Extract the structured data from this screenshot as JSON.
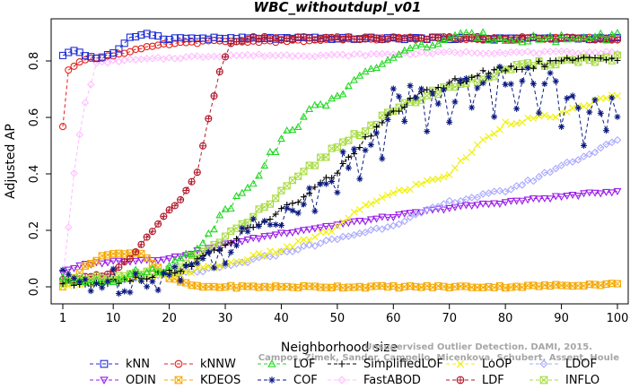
{
  "chart_data": {
    "type": "line",
    "title": "WBC_withoutdupl_v01",
    "xlabel": "Neighborhood size",
    "ylabel": "Adjusted AP",
    "xlim": [
      1,
      100
    ],
    "ylim": [
      -0.04,
      0.93
    ],
    "xticks": [
      1,
      10,
      20,
      30,
      40,
      50,
      60,
      70,
      80,
      90,
      100
    ],
    "yticks": [
      0.0,
      0.2,
      0.4,
      0.6,
      0.8
    ],
    "ytick_labels": [
      "0.0",
      "0.2",
      "0.4",
      "0.6",
      "0.8"
    ],
    "grid": false,
    "legend_position": "bottom",
    "watermark_lines": [
      "Unsupervised Outlier Detection. DAMI, 2015.",
      "Campos, Zimek, Sander, Campello, Micenkova, Schubert, Assent, Houle"
    ],
    "series": [
      {
        "name": "kNN",
        "color": "#1f2fd6",
        "marker": "square",
        "knots": [
          [
            1,
            0.82
          ],
          [
            3,
            0.84
          ],
          [
            5,
            0.82
          ],
          [
            7,
            0.81
          ],
          [
            9,
            0.82
          ],
          [
            11,
            0.84
          ],
          [
            13,
            0.88
          ],
          [
            16,
            0.9
          ],
          [
            19,
            0.88
          ],
          [
            22,
            0.88
          ],
          [
            25,
            0.88
          ],
          [
            30,
            0.88
          ],
          [
            40,
            0.88
          ],
          [
            60,
            0.88
          ],
          [
            100,
            0.88
          ]
        ]
      },
      {
        "name": "kNNW",
        "color": "#e3201c",
        "marker": "circle",
        "knots": [
          [
            1,
            0.57
          ],
          [
            2,
            0.77
          ],
          [
            4,
            0.8
          ],
          [
            7,
            0.81
          ],
          [
            10,
            0.82
          ],
          [
            14,
            0.84
          ],
          [
            20,
            0.86
          ],
          [
            28,
            0.87
          ],
          [
            40,
            0.87
          ],
          [
            60,
            0.88
          ],
          [
            100,
            0.88
          ]
        ]
      },
      {
        "name": "LOF",
        "color": "#22d822",
        "marker": "triangle",
        "knots": [
          [
            1,
            0.02
          ],
          [
            10,
            0.03
          ],
          [
            20,
            0.07
          ],
          [
            25,
            0.14
          ],
          [
            30,
            0.27
          ],
          [
            35,
            0.38
          ],
          [
            40,
            0.52
          ],
          [
            45,
            0.62
          ],
          [
            50,
            0.68
          ],
          [
            55,
            0.75
          ],
          [
            60,
            0.82
          ],
          [
            65,
            0.85
          ],
          [
            70,
            0.88
          ],
          [
            75,
            0.89
          ],
          [
            80,
            0.88
          ],
          [
            90,
            0.88
          ],
          [
            100,
            0.89
          ]
        ]
      },
      {
        "name": "SimplifiedLOF",
        "color": "#000000",
        "marker": "plus",
        "knots": [
          [
            1,
            0.01
          ],
          [
            10,
            0.02
          ],
          [
            20,
            0.05
          ],
          [
            25,
            0.09
          ],
          [
            30,
            0.15
          ],
          [
            35,
            0.21
          ],
          [
            40,
            0.27
          ],
          [
            45,
            0.33
          ],
          [
            50,
            0.41
          ],
          [
            55,
            0.52
          ],
          [
            60,
            0.62
          ],
          [
            65,
            0.68
          ],
          [
            70,
            0.72
          ],
          [
            75,
            0.75
          ],
          [
            80,
            0.77
          ],
          [
            90,
            0.8
          ],
          [
            100,
            0.81
          ]
        ]
      },
      {
        "name": "LoOP",
        "color": "#f0f000",
        "marker": "x",
        "knots": [
          [
            1,
            0.01
          ],
          [
            10,
            0.02
          ],
          [
            20,
            0.04
          ],
          [
            30,
            0.08
          ],
          [
            40,
            0.13
          ],
          [
            50,
            0.21
          ],
          [
            55,
            0.29
          ],
          [
            60,
            0.33
          ],
          [
            70,
            0.4
          ],
          [
            75,
            0.5
          ],
          [
            80,
            0.58
          ],
          [
            90,
            0.61
          ],
          [
            95,
            0.65
          ],
          [
            100,
            0.68
          ]
        ]
      },
      {
        "name": "LDOF",
        "color": "#a8a8ff",
        "marker": "diamond",
        "knots": [
          [
            1,
            0.02
          ],
          [
            10,
            0.02
          ],
          [
            20,
            0.04
          ],
          [
            30,
            0.07
          ],
          [
            40,
            0.12
          ],
          [
            50,
            0.17
          ],
          [
            60,
            0.22
          ],
          [
            70,
            0.3
          ],
          [
            80,
            0.34
          ],
          [
            85,
            0.38
          ],
          [
            90,
            0.43
          ],
          [
            95,
            0.47
          ],
          [
            100,
            0.52
          ]
        ]
      },
      {
        "name": "ODIN",
        "color": "#9a1be8",
        "marker": "triangle-down",
        "knots": [
          [
            1,
            0.05
          ],
          [
            5,
            0.08
          ],
          [
            10,
            0.09
          ],
          [
            20,
            0.1
          ],
          [
            30,
            0.15
          ],
          [
            40,
            0.19
          ],
          [
            50,
            0.22
          ],
          [
            60,
            0.25
          ],
          [
            70,
            0.28
          ],
          [
            80,
            0.3
          ],
          [
            90,
            0.32
          ],
          [
            100,
            0.34
          ]
        ]
      },
      {
        "name": "COF",
        "color": "#0a1a80",
        "marker": "asterisk",
        "knots": [
          [
            1,
            0.02
          ],
          [
            10,
            0.02
          ],
          [
            20,
            0.04
          ],
          [
            25,
            0.08
          ],
          [
            30,
            0.13
          ],
          [
            35,
            0.2
          ],
          [
            40,
            0.26
          ],
          [
            45,
            0.34
          ],
          [
            50,
            0.42
          ],
          [
            55,
            0.52
          ],
          [
            60,
            0.66
          ],
          [
            65,
            0.7
          ],
          [
            70,
            0.68
          ],
          [
            75,
            0.73
          ],
          [
            80,
            0.75
          ],
          [
            85,
            0.73
          ],
          [
            90,
            0.71
          ],
          [
            95,
            0.66
          ],
          [
            100,
            0.63
          ]
        ]
      },
      {
        "name": "FastABOD",
        "color": "#ffbcff",
        "marker": "diamond",
        "knots": [
          [
            1,
            0.02
          ],
          [
            3,
            0.4
          ],
          [
            4,
            0.54
          ],
          [
            5,
            0.65
          ],
          [
            7,
            0.79
          ],
          [
            10,
            0.8
          ],
          [
            20,
            0.81
          ],
          [
            30,
            0.82
          ],
          [
            50,
            0.82
          ],
          [
            70,
            0.83
          ],
          [
            100,
            0.83
          ]
        ]
      },
      {
        "name": "LDF",
        "color": "#b2192a",
        "marker": "circle-plus",
        "knots": [
          [
            1,
            0.02
          ],
          [
            10,
            0.05
          ],
          [
            14,
            0.12
          ],
          [
            17,
            0.2
          ],
          [
            20,
            0.27
          ],
          [
            22,
            0.31
          ],
          [
            25,
            0.4
          ],
          [
            27,
            0.6
          ],
          [
            29,
            0.76
          ],
          [
            31,
            0.86
          ],
          [
            35,
            0.88
          ],
          [
            40,
            0.88
          ],
          [
            60,
            0.88
          ],
          [
            100,
            0.88
          ]
        ]
      },
      {
        "name": "KDEOS",
        "color": "#f5a800",
        "marker": "square-x",
        "knots": [
          [
            1,
            0.0
          ],
          [
            5,
            0.07
          ],
          [
            8,
            0.11
          ],
          [
            12,
            0.12
          ],
          [
            15,
            0.12
          ],
          [
            20,
            0.03
          ],
          [
            25,
            0.0
          ],
          [
            40,
            0.0
          ],
          [
            60,
            0.0
          ],
          [
            80,
            0.0
          ],
          [
            100,
            0.01
          ]
        ]
      },
      {
        "name": "INFLO",
        "color": "#a6dc40",
        "marker": "square-x",
        "knots": [
          [
            1,
            0.02
          ],
          [
            10,
            0.03
          ],
          [
            20,
            0.06
          ],
          [
            25,
            0.11
          ],
          [
            30,
            0.17
          ],
          [
            35,
            0.25
          ],
          [
            40,
            0.33
          ],
          [
            45,
            0.42
          ],
          [
            50,
            0.5
          ],
          [
            55,
            0.56
          ],
          [
            60,
            0.62
          ],
          [
            65,
            0.67
          ],
          [
            70,
            0.71
          ],
          [
            75,
            0.73
          ],
          [
            80,
            0.77
          ],
          [
            90,
            0.8
          ],
          [
            100,
            0.81
          ]
        ]
      }
    ],
    "legend_rows": [
      [
        "kNN",
        "kNNW",
        "LOF",
        "SimplifiedLOF",
        "LoOP",
        "LDOF"
      ],
      [
        "ODIN",
        "KDEOS",
        "COF",
        "FastABOD",
        "LDF",
        "INFLO"
      ]
    ]
  }
}
